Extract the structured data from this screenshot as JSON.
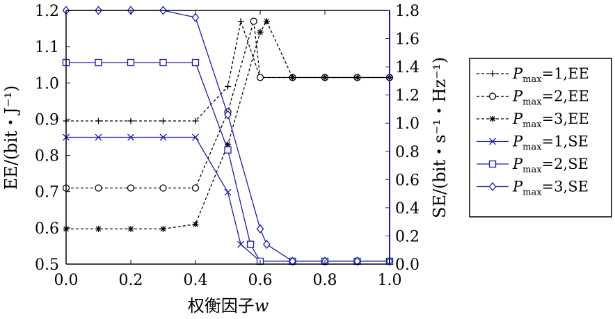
{
  "chart_data": {
    "type": "line",
    "x_label": "权衡因子",
    "x_label_var": "w",
    "y_left_label": "EE/(bit・J⁻¹)",
    "y_right_label": "SE/(bit・s⁻¹・Hz⁻¹)",
    "x_ticks": [
      "0.0",
      "0.2",
      "0.4",
      "0.6",
      "0.8",
      "1.0"
    ],
    "y_left_ticks": [
      "0.5",
      "0.6",
      "0.7",
      "0.8",
      "0.9",
      "1.0",
      "1.1",
      "1.2"
    ],
    "y_right_ticks": [
      "0.0",
      "0.2",
      "0.4",
      "0.6",
      "0.8",
      "1.0",
      "1.2",
      "1.4",
      "1.6",
      "1.8"
    ],
    "xlim": [
      0,
      1
    ],
    "ylim_left": [
      0.5,
      1.2
    ],
    "ylim_right": [
      0,
      1.8
    ],
    "grid": false,
    "legend_position": "right",
    "series": [
      {
        "name": "P_max=1,EE",
        "p": "P",
        "sub": "max",
        "rest": "=1,EE",
        "axis": "left",
        "color": "#000000",
        "dash": "dashed",
        "marker": "plus",
        "x": [
          0,
          0.1,
          0.2,
          0.3,
          0.4,
          0.5,
          0.54,
          0.6,
          0.7,
          0.8,
          0.9,
          1.0
        ],
        "y": [
          0.895,
          0.895,
          0.895,
          0.895,
          0.895,
          0.99,
          1.17,
          1.015,
          1.015,
          1.015,
          1.015,
          1.015
        ]
      },
      {
        "name": "P_max=2,EE",
        "p": "P",
        "sub": "max",
        "rest": "=2,EE",
        "axis": "left",
        "color": "#000000",
        "dash": "dashed",
        "marker": "circle",
        "x": [
          0,
          0.1,
          0.2,
          0.3,
          0.4,
          0.5,
          0.58,
          0.6,
          0.7,
          0.8,
          0.9,
          1.0
        ],
        "y": [
          0.71,
          0.71,
          0.71,
          0.71,
          0.71,
          0.92,
          1.17,
          1.015,
          1.015,
          1.015,
          1.015,
          1.015
        ]
      },
      {
        "name": "P_max=3,EE",
        "p": "P",
        "sub": "max",
        "rest": "=3,EE",
        "axis": "left",
        "color": "#000000",
        "dash": "dashed",
        "marker": "star",
        "x": [
          0,
          0.1,
          0.2,
          0.3,
          0.4,
          0.5,
          0.6,
          0.62,
          0.7,
          0.8,
          0.9,
          1.0
        ],
        "y": [
          0.597,
          0.597,
          0.597,
          0.597,
          0.61,
          0.83,
          1.14,
          1.17,
          1.015,
          1.015,
          1.015,
          1.015
        ]
      },
      {
        "name": "P_max=1,SE",
        "p": "P",
        "sub": "max",
        "rest": "=1,SE",
        "axis": "right",
        "color": "#1a1aaa",
        "dash": "solid",
        "marker": "x",
        "x": [
          0,
          0.1,
          0.2,
          0.3,
          0.4,
          0.5,
          0.54,
          0.6,
          0.7,
          0.8,
          0.9,
          1.0
        ],
        "y": [
          0.9,
          0.9,
          0.9,
          0.9,
          0.9,
          0.51,
          0.14,
          0.02,
          0.02,
          0.02,
          0.02,
          0.02
        ]
      },
      {
        "name": "P_max=2,SE",
        "p": "P",
        "sub": "max",
        "rest": "=2,SE",
        "axis": "right",
        "color": "#1a1aaa",
        "dash": "solid",
        "marker": "square",
        "x": [
          0,
          0.1,
          0.2,
          0.3,
          0.4,
          0.5,
          0.57,
          0.6,
          0.7,
          0.8,
          0.9,
          1.0
        ],
        "y": [
          1.43,
          1.43,
          1.43,
          1.43,
          1.43,
          0.81,
          0.14,
          0.02,
          0.02,
          0.02,
          0.02,
          0.02
        ]
      },
      {
        "name": "P_max=3,SE",
        "p": "P",
        "sub": "max",
        "rest": "=3,SE",
        "axis": "right",
        "color": "#1a1aaa",
        "dash": "solid",
        "marker": "diamond",
        "x": [
          0,
          0.1,
          0.2,
          0.3,
          0.4,
          0.5,
          0.6,
          0.62,
          0.7,
          0.8,
          0.9,
          1.0
        ],
        "y": [
          1.8,
          1.8,
          1.8,
          1.8,
          1.75,
          1.06,
          0.25,
          0.14,
          0.02,
          0.02,
          0.02,
          0.02
        ]
      }
    ]
  }
}
